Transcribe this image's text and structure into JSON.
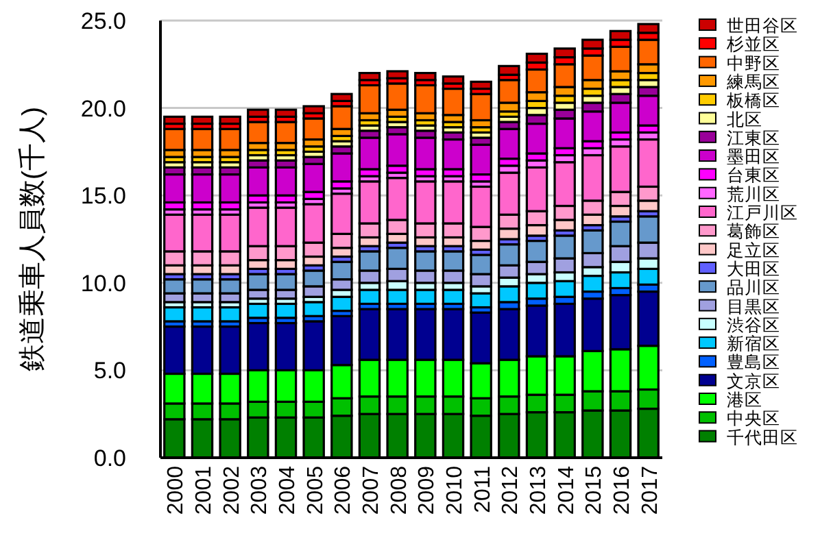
{
  "chart_data": {
    "type": "bar",
    "stacked": true,
    "ylabel": "鉄道乗車人員数(千人)",
    "categories": [
      "2000",
      "2001",
      "2002",
      "2003",
      "2004",
      "2005",
      "2006",
      "2007",
      "2008",
      "2009",
      "2010",
      "2011",
      "2012",
      "2013",
      "2014",
      "2015",
      "2016",
      "2017"
    ],
    "ylim": [
      0,
      25
    ],
    "yticks": [
      {
        "value": 0,
        "label": "0.0"
      },
      {
        "value": 5,
        "label": "5.0"
      },
      {
        "value": 10,
        "label": "10.0"
      },
      {
        "value": 15,
        "label": "15.0"
      },
      {
        "value": 20,
        "label": "20.0"
      },
      {
        "value": 25,
        "label": "25.0"
      }
    ],
    "grid": "y",
    "legend": "right",
    "series": [
      {
        "name": "千代田区",
        "color": "#008000",
        "values": [
          2.2,
          2.2,
          2.2,
          2.3,
          2.3,
          2.3,
          2.4,
          2.5,
          2.5,
          2.5,
          2.5,
          2.4,
          2.5,
          2.6,
          2.6,
          2.7,
          2.7,
          2.8
        ]
      },
      {
        "name": "中央区",
        "color": "#00c000",
        "values": [
          0.9,
          0.9,
          0.9,
          0.9,
          0.9,
          0.9,
          1.0,
          1.0,
          1.0,
          1.0,
          1.0,
          1.0,
          1.0,
          1.0,
          1.0,
          1.1,
          1.1,
          1.1
        ]
      },
      {
        "name": "港区",
        "color": "#00ff00",
        "values": [
          1.7,
          1.7,
          1.7,
          1.8,
          1.8,
          1.8,
          1.9,
          2.1,
          2.1,
          2.1,
          2.1,
          2.0,
          2.1,
          2.2,
          2.2,
          2.3,
          2.4,
          2.5
        ]
      },
      {
        "name": "文京区",
        "color": "#000090",
        "values": [
          2.7,
          2.7,
          2.7,
          2.7,
          2.7,
          2.8,
          2.8,
          2.9,
          2.9,
          2.9,
          2.9,
          2.9,
          2.9,
          2.9,
          3.0,
          3.0,
          3.1,
          3.1
        ]
      },
      {
        "name": "豊島区",
        "color": "#0060ff",
        "values": [
          0.3,
          0.3,
          0.3,
          0.3,
          0.3,
          0.3,
          0.3,
          0.3,
          0.3,
          0.3,
          0.3,
          0.3,
          0.4,
          0.4,
          0.4,
          0.4,
          0.4,
          0.4
        ]
      },
      {
        "name": "新宿区",
        "color": "#00c8ff",
        "values": [
          0.8,
          0.8,
          0.8,
          0.8,
          0.8,
          0.8,
          0.8,
          0.8,
          0.8,
          0.8,
          0.8,
          0.8,
          0.9,
          0.9,
          0.9,
          0.9,
          0.9,
          0.9
        ]
      },
      {
        "name": "渋谷区",
        "color": "#c8ffff",
        "values": [
          0.3,
          0.3,
          0.3,
          0.3,
          0.3,
          0.3,
          0.4,
          0.4,
          0.5,
          0.4,
          0.4,
          0.4,
          0.5,
          0.5,
          0.5,
          0.5,
          0.6,
          0.6
        ]
      },
      {
        "name": "目黒区",
        "color": "#a0a0e0",
        "values": [
          0.5,
          0.5,
          0.5,
          0.5,
          0.5,
          0.6,
          0.6,
          0.7,
          0.7,
          0.7,
          0.7,
          0.7,
          0.7,
          0.7,
          0.8,
          0.8,
          0.9,
          0.9
        ]
      },
      {
        "name": "品川区",
        "color": "#6699cc",
        "values": [
          0.8,
          0.8,
          0.8,
          0.9,
          0.9,
          0.9,
          1.0,
          1.1,
          1.2,
          1.1,
          1.1,
          1.1,
          1.2,
          1.2,
          1.3,
          1.3,
          1.4,
          1.5
        ]
      },
      {
        "name": "大田区",
        "color": "#6060ff",
        "values": [
          0.3,
          0.3,
          0.3,
          0.3,
          0.3,
          0.3,
          0.3,
          0.3,
          0.3,
          0.3,
          0.3,
          0.3,
          0.3,
          0.3,
          0.3,
          0.3,
          0.3,
          0.3
        ]
      },
      {
        "name": "足立区",
        "color": "#ffc8c8",
        "values": [
          0.5,
          0.5,
          0.5,
          0.5,
          0.5,
          0.5,
          0.5,
          0.5,
          0.5,
          0.5,
          0.5,
          0.5,
          0.6,
          0.6,
          0.6,
          0.6,
          0.6,
          0.6
        ]
      },
      {
        "name": "葛飾区",
        "color": "#ff99cc",
        "values": [
          0.8,
          0.8,
          0.8,
          0.8,
          0.8,
          0.8,
          0.8,
          0.8,
          0.8,
          0.8,
          0.8,
          0.8,
          0.8,
          0.8,
          0.8,
          0.8,
          0.8,
          0.8
        ]
      },
      {
        "name": "江戸川区",
        "color": "#ff66cc",
        "values": [
          2.1,
          2.1,
          2.1,
          2.2,
          2.2,
          2.2,
          2.3,
          2.4,
          2.4,
          2.4,
          2.4,
          2.3,
          2.4,
          2.5,
          2.5,
          2.6,
          2.6,
          2.7
        ]
      },
      {
        "name": "荒川区",
        "color": "#ff66ff",
        "values": [
          0.3,
          0.3,
          0.3,
          0.3,
          0.3,
          0.3,
          0.3,
          0.3,
          0.3,
          0.3,
          0.3,
          0.3,
          0.4,
          0.4,
          0.4,
          0.4,
          0.4,
          0.4
        ]
      },
      {
        "name": "台東区",
        "color": "#ff00ff",
        "values": [
          0.4,
          0.4,
          0.4,
          0.4,
          0.4,
          0.4,
          0.4,
          0.4,
          0.4,
          0.4,
          0.4,
          0.4,
          0.4,
          0.4,
          0.4,
          0.4,
          0.4,
          0.4
        ]
      },
      {
        "name": "墨田区",
        "color": "#cc00cc",
        "values": [
          1.6,
          1.6,
          1.6,
          1.6,
          1.6,
          1.6,
          1.6,
          1.8,
          1.8,
          1.8,
          1.7,
          1.7,
          1.7,
          1.7,
          1.7,
          1.7,
          1.7,
          1.7
        ]
      },
      {
        "name": "江東区",
        "color": "#990099",
        "values": [
          0.4,
          0.4,
          0.4,
          0.4,
          0.4,
          0.4,
          0.4,
          0.4,
          0.4,
          0.4,
          0.4,
          0.4,
          0.4,
          0.5,
          0.5,
          0.5,
          0.5,
          0.5
        ]
      },
      {
        "name": "北区",
        "color": "#ffff99",
        "values": [
          0.3,
          0.3,
          0.3,
          0.3,
          0.3,
          0.3,
          0.3,
          0.3,
          0.3,
          0.3,
          0.3,
          0.3,
          0.3,
          0.4,
          0.4,
          0.4,
          0.4,
          0.4
        ]
      },
      {
        "name": "板橋区",
        "color": "#ffcc00",
        "values": [
          0.3,
          0.3,
          0.3,
          0.3,
          0.3,
          0.3,
          0.3,
          0.3,
          0.3,
          0.3,
          0.3,
          0.3,
          0.3,
          0.4,
          0.4,
          0.4,
          0.4,
          0.4
        ]
      },
      {
        "name": "練馬区",
        "color": "#ff9900",
        "values": [
          0.4,
          0.4,
          0.4,
          0.4,
          0.4,
          0.4,
          0.4,
          0.4,
          0.4,
          0.4,
          0.4,
          0.4,
          0.5,
          0.5,
          0.5,
          0.5,
          0.5,
          0.5
        ]
      },
      {
        "name": "中野区",
        "color": "#ff6600",
        "values": [
          1.2,
          1.2,
          1.2,
          1.2,
          1.2,
          1.2,
          1.3,
          1.6,
          1.5,
          1.6,
          1.5,
          1.5,
          1.3,
          1.3,
          1.3,
          1.4,
          1.4,
          1.4
        ]
      },
      {
        "name": "杉並区",
        "color": "#ff0000",
        "values": [
          0.3,
          0.3,
          0.3,
          0.3,
          0.3,
          0.3,
          0.3,
          0.3,
          0.3,
          0.3,
          0.3,
          0.3,
          0.3,
          0.4,
          0.4,
          0.4,
          0.4,
          0.4
        ]
      },
      {
        "name": "世田谷区",
        "color": "#cc0000",
        "values": [
          0.4,
          0.4,
          0.4,
          0.4,
          0.4,
          0.4,
          0.4,
          0.4,
          0.4,
          0.4,
          0.4,
          0.4,
          0.5,
          0.5,
          0.5,
          0.5,
          0.5,
          0.5
        ]
      }
    ]
  }
}
